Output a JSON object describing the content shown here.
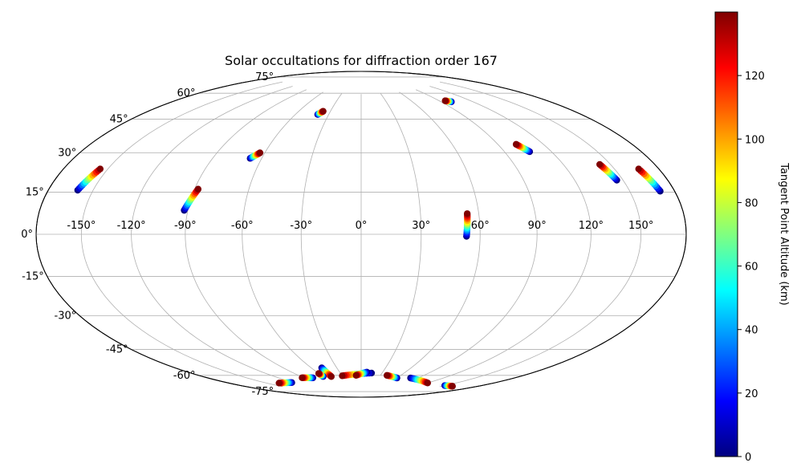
{
  "chart_data": {
    "type": "scatter",
    "projection": "hammer",
    "title": "Solar occultations for diffraction order 167",
    "grid": true,
    "longitude_ticks": [
      "-150°",
      "-120°",
      "-90°",
      "-60°",
      "-30°",
      "0°",
      "30°",
      "60°",
      "90°",
      "120°",
      "150°"
    ],
    "longitude_tick_values": [
      -150,
      -120,
      -90,
      -60,
      -30,
      0,
      30,
      60,
      90,
      120,
      150
    ],
    "latitude_ticks": [
      "75°",
      "60°",
      "45°",
      "30°",
      "15°",
      "0°",
      "-15°",
      "-30°",
      "-45°",
      "-60°",
      "-75°"
    ],
    "latitude_tick_values": [
      75,
      60,
      45,
      30,
      15,
      0,
      -15,
      -30,
      -45,
      -60,
      -75
    ],
    "colorbar": {
      "label": "Tangent Point Altitude (km)",
      "colormap": "jet",
      "range": [
        0,
        140
      ],
      "ticks": [
        "0",
        "20",
        "40",
        "60",
        "80",
        "100",
        "120"
      ],
      "tick_values": [
        0,
        20,
        40,
        60,
        80,
        100,
        120
      ]
    },
    "tracks": [
      {
        "lon_start": -160,
        "lat_start": 17,
        "lon_end": -155,
        "lat_end": 26
      },
      {
        "lon_start": -92,
        "lat_start": 11,
        "lon_end": -88,
        "lat_end": 21
      },
      {
        "lon_start": -67,
        "lat_start": 37,
        "lon_end": -63,
        "lat_end": 40
      },
      {
        "lon_start": -40,
        "lat_start": 62,
        "lon_end": -37,
        "lat_end": 64
      },
      {
        "lon_start": 53,
        "lat_start": -1,
        "lon_end": 54,
        "lat_end": 10
      },
      {
        "lon_start": 100,
        "lat_start": 66,
        "lon_end": 96,
        "lat_end": 67
      },
      {
        "lon_start": 106,
        "lat_start": 38,
        "lon_end": 102,
        "lat_end": 42
      },
      {
        "lon_start": 146,
        "lat_start": 22,
        "lon_end": 143,
        "lat_end": 29
      },
      {
        "lon_start": 170,
        "lat_start": 16,
        "lon_end": 166,
        "lat_end": 25
      },
      {
        "lon_start": -122,
        "lat_start": -75,
        "lon_end": -138,
        "lat_end": -73.5
      },
      {
        "lon_start": -78,
        "lat_start": -75,
        "lon_end": -92,
        "lat_end": -74
      },
      {
        "lon_start": -48,
        "lat_start": -70,
        "lon_end": -48,
        "lat_end": -75.5
      },
      {
        "lon_start": -60,
        "lat_start": -75,
        "lon_end": -60,
        "lat_end": -73
      },
      {
        "lon_start": 15,
        "lat_start": -74,
        "lon_end": -30,
        "lat_end": -75.5
      },
      {
        "lon_start": 8,
        "lat_start": -73.5,
        "lon_end": -8,
        "lat_end": -75.5
      },
      {
        "lon_start": 60,
        "lat_start": -76,
        "lon_end": 40,
        "lat_end": -75
      },
      {
        "lon_start": 80,
        "lat_start": -75,
        "lon_end": 120,
        "lat_end": -75.5
      },
      {
        "lon_start": 150,
        "lat_start": -74,
        "lon_end": 160,
        "lat_end": -73
      }
    ]
  }
}
